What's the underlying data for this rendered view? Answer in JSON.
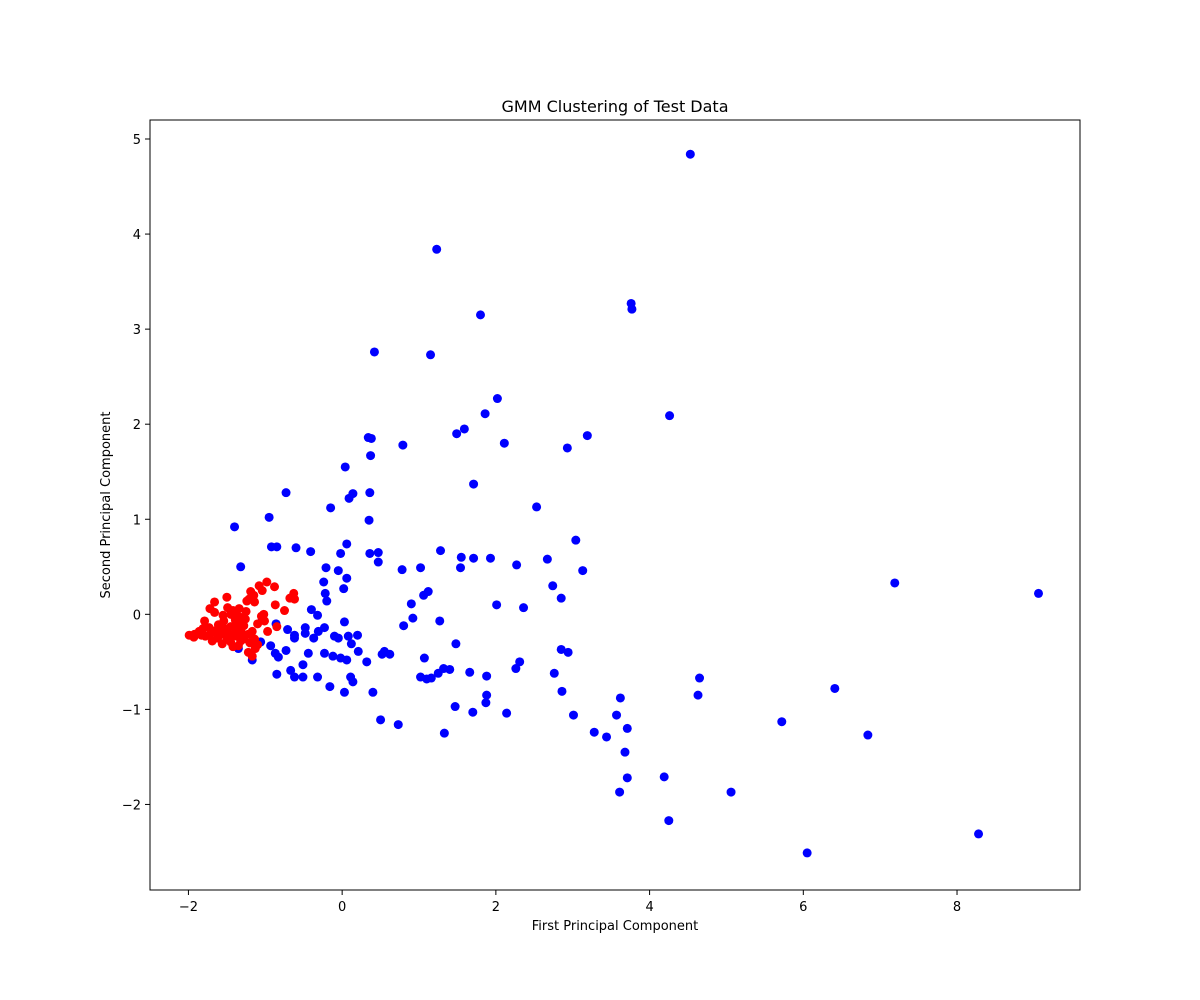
{
  "chart_data": {
    "type": "scatter",
    "title": "GMM Clustering of Test Data",
    "xlabel": "First Principal Component",
    "ylabel": "Second Principal Component",
    "xlim": [
      -2.5,
      9.6
    ],
    "ylim": [
      -2.9,
      5.2
    ],
    "xticks": [
      -2,
      0,
      2,
      4,
      6,
      8
    ],
    "yticks": [
      -2,
      -1,
      0,
      1,
      2,
      3,
      4,
      5
    ],
    "grid": false,
    "legend": "none",
    "series": [
      {
        "color": "#0000ff",
        "points": [
          [
            4.53,
            4.84
          ],
          [
            1.23,
            3.84
          ],
          [
            3.76,
            3.27
          ],
          [
            3.77,
            3.21
          ],
          [
            1.8,
            3.15
          ],
          [
            0.42,
            2.76
          ],
          [
            1.15,
            2.73
          ],
          [
            2.02,
            2.27
          ],
          [
            4.26,
            2.09
          ],
          [
            1.86,
            2.11
          ],
          [
            1.59,
            1.95
          ],
          [
            1.49,
            1.9
          ],
          [
            3.19,
            1.88
          ],
          [
            0.34,
            1.86
          ],
          [
            0.38,
            1.85
          ],
          [
            2.11,
            1.8
          ],
          [
            0.79,
            1.78
          ],
          [
            2.93,
            1.75
          ],
          [
            0.37,
            1.67
          ],
          [
            0.04,
            1.55
          ],
          [
            1.71,
            1.37
          ],
          [
            -0.73,
            1.28
          ],
          [
            0.14,
            1.27
          ],
          [
            0.36,
            1.28
          ],
          [
            0.09,
            1.22
          ],
          [
            -0.15,
            1.12
          ],
          [
            2.53,
            1.13
          ],
          [
            -0.95,
            1.02
          ],
          [
            0.35,
            0.99
          ],
          [
            -1.4,
            0.92
          ],
          [
            3.04,
            0.78
          ],
          [
            0.06,
            0.74
          ],
          [
            -0.92,
            0.71
          ],
          [
            -0.85,
            0.71
          ],
          [
            -0.6,
            0.7
          ],
          [
            1.28,
            0.67
          ],
          [
            -0.41,
            0.66
          ],
          [
            0.47,
            0.65
          ],
          [
            -0.02,
            0.64
          ],
          [
            0.36,
            0.64
          ],
          [
            1.55,
            0.6
          ],
          [
            1.71,
            0.59
          ],
          [
            1.93,
            0.59
          ],
          [
            2.67,
            0.58
          ],
          [
            0.47,
            0.55
          ],
          [
            2.27,
            0.52
          ],
          [
            -1.32,
            0.5
          ],
          [
            1.54,
            0.49
          ],
          [
            1.02,
            0.49
          ],
          [
            -0.21,
            0.49
          ],
          [
            -0.05,
            0.46
          ],
          [
            0.78,
            0.47
          ],
          [
            3.13,
            0.46
          ],
          [
            0.06,
            0.38
          ],
          [
            -0.24,
            0.34
          ],
          [
            2.74,
            0.3
          ],
          [
            0.02,
            0.27
          ],
          [
            -0.22,
            0.22
          ],
          [
            1.12,
            0.24
          ],
          [
            1.06,
            0.2
          ],
          [
            2.85,
            0.17
          ],
          [
            -0.2,
            0.14
          ],
          [
            0.9,
            0.11
          ],
          [
            2.01,
            0.1
          ],
          [
            2.36,
            0.07
          ],
          [
            -0.4,
            0.05
          ],
          [
            -0.32,
            -0.01
          ],
          [
            0.92,
            -0.04
          ],
          [
            1.27,
            -0.07
          ],
          [
            0.03,
            -0.08
          ],
          [
            -1.04,
            -0.04
          ],
          [
            -0.86,
            -0.1
          ],
          [
            0.8,
            -0.12
          ],
          [
            -0.23,
            -0.14
          ],
          [
            -0.48,
            -0.14
          ],
          [
            -0.31,
            -0.18
          ],
          [
            -0.71,
            -0.16
          ],
          [
            -0.48,
            -0.2
          ],
          [
            -0.62,
            -0.22
          ],
          [
            -0.1,
            -0.23
          ],
          [
            0.08,
            -0.23
          ],
          [
            0.2,
            -0.22
          ],
          [
            -0.37,
            -0.25
          ],
          [
            -0.62,
            -0.25
          ],
          [
            -0.05,
            -0.25
          ],
          [
            -1.06,
            -0.29
          ],
          [
            0.12,
            -0.31
          ],
          [
            1.48,
            -0.31
          ],
          [
            -0.93,
            -0.33
          ],
          [
            -1.35,
            -0.36
          ],
          [
            -0.73,
            -0.38
          ],
          [
            0.21,
            -0.39
          ],
          [
            2.85,
            -0.37
          ],
          [
            2.94,
            -0.4
          ],
          [
            -0.87,
            -0.41
          ],
          [
            -0.44,
            -0.41
          ],
          [
            -0.23,
            -0.41
          ],
          [
            0.55,
            -0.39
          ],
          [
            0.52,
            -0.42
          ],
          [
            0.62,
            -0.42
          ],
          [
            -0.83,
            -0.45
          ],
          [
            -0.12,
            -0.44
          ],
          [
            -1.17,
            -0.48
          ],
          [
            -0.02,
            -0.46
          ],
          [
            0.06,
            -0.48
          ],
          [
            1.07,
            -0.46
          ],
          [
            2.31,
            -0.5
          ],
          [
            0.32,
            -0.5
          ],
          [
            -0.51,
            -0.53
          ],
          [
            1.4,
            -0.58
          ],
          [
            -0.67,
            -0.59
          ],
          [
            1.32,
            -0.57
          ],
          [
            2.26,
            -0.57
          ],
          [
            1.66,
            -0.61
          ],
          [
            1.25,
            -0.62
          ],
          [
            -0.85,
            -0.63
          ],
          [
            1.88,
            -0.65
          ],
          [
            -0.62,
            -0.66
          ],
          [
            -0.51,
            -0.66
          ],
          [
            -0.32,
            -0.66
          ],
          [
            0.11,
            -0.66
          ],
          [
            1.02,
            -0.66
          ],
          [
            1.1,
            -0.68
          ],
          [
            4.65,
            -0.67
          ],
          [
            1.16,
            -0.67
          ],
          [
            0.14,
            -0.71
          ],
          [
            -0.16,
            -0.76
          ],
          [
            2.76,
            -0.62
          ],
          [
            6.41,
            -0.78
          ],
          [
            0.03,
            -0.82
          ],
          [
            2.86,
            -0.81
          ],
          [
            0.4,
            -0.82
          ],
          [
            4.63,
            -0.85
          ],
          [
            1.88,
            -0.85
          ],
          [
            3.62,
            -0.88
          ],
          [
            1.87,
            -0.93
          ],
          [
            1.47,
            -0.97
          ],
          [
            1.7,
            -1.03
          ],
          [
            2.14,
            -1.04
          ],
          [
            3.57,
            -1.06
          ],
          [
            3.01,
            -1.06
          ],
          [
            0.5,
            -1.11
          ],
          [
            5.72,
            -1.13
          ],
          [
            0.73,
            -1.16
          ],
          [
            3.71,
            -1.2
          ],
          [
            3.28,
            -1.24
          ],
          [
            1.33,
            -1.25
          ],
          [
            3.44,
            -1.29
          ],
          [
            6.84,
            -1.27
          ],
          [
            3.68,
            -1.45
          ],
          [
            4.19,
            -1.71
          ],
          [
            3.71,
            -1.72
          ],
          [
            3.61,
            -1.87
          ],
          [
            5.06,
            -1.87
          ],
          [
            4.25,
            -2.17
          ],
          [
            8.28,
            -2.31
          ],
          [
            6.05,
            -2.51
          ],
          [
            7.19,
            0.33
          ],
          [
            9.06,
            0.22
          ]
        ]
      },
      {
        "color": "#ff0000",
        "points": [
          [
            -0.98,
            0.34
          ],
          [
            -1.08,
            0.3
          ],
          [
            -0.88,
            0.29
          ],
          [
            -1.04,
            0.25
          ],
          [
            -1.19,
            0.24
          ],
          [
            -0.63,
            0.22
          ],
          [
            -1.15,
            0.2
          ],
          [
            -0.68,
            0.17
          ],
          [
            -1.21,
            0.16
          ],
          [
            -1.5,
            0.18
          ],
          [
            -1.66,
            0.13
          ],
          [
            -0.62,
            0.16
          ],
          [
            -1.14,
            0.13
          ],
          [
            -1.72,
            0.06
          ],
          [
            -1.24,
            0.14
          ],
          [
            -0.87,
            0.1
          ],
          [
            -1.49,
            0.07
          ],
          [
            -1.34,
            0.06
          ],
          [
            -0.75,
            0.04
          ],
          [
            -1.25,
            0.03
          ],
          [
            -1.38,
            0.01
          ],
          [
            -1.66,
            0.02
          ],
          [
            -1.45,
            0.0
          ],
          [
            -1.02,
            0.0
          ],
          [
            -1.55,
            -0.01
          ],
          [
            -1.33,
            -0.03
          ],
          [
            -1.26,
            -0.05
          ],
          [
            -1.79,
            -0.07
          ],
          [
            -1.54,
            -0.07
          ],
          [
            -1.39,
            -0.06
          ],
          [
            -1.01,
            -0.07
          ],
          [
            -1.1,
            -0.1
          ],
          [
            -1.35,
            -0.1
          ],
          [
            -1.61,
            -0.11
          ],
          [
            -1.28,
            -0.12
          ],
          [
            -0.85,
            -0.13
          ],
          [
            -1.45,
            -0.13
          ],
          [
            -1.73,
            -0.14
          ],
          [
            -1.55,
            -0.14
          ],
          [
            -1.81,
            -0.15
          ],
          [
            -1.64,
            -0.17
          ],
          [
            -1.38,
            -0.16
          ],
          [
            -1.17,
            -0.18
          ],
          [
            -1.5,
            -0.19
          ],
          [
            -1.86,
            -0.18
          ],
          [
            -0.97,
            -0.18
          ],
          [
            -1.31,
            -0.19
          ],
          [
            -1.71,
            -0.2
          ],
          [
            -1.92,
            -0.21
          ],
          [
            -1.58,
            -0.21
          ],
          [
            -1.44,
            -0.22
          ],
          [
            -1.22,
            -0.21
          ],
          [
            -1.99,
            -0.22
          ],
          [
            -1.78,
            -0.23
          ],
          [
            -1.37,
            -0.23
          ],
          [
            -1.62,
            -0.25
          ],
          [
            -1.5,
            -0.25
          ],
          [
            -1.14,
            -0.26
          ],
          [
            -1.93,
            -0.24
          ],
          [
            -1.28,
            -0.26
          ],
          [
            -1.69,
            -0.28
          ],
          [
            -1.45,
            -0.29
          ],
          [
            -1.2,
            -0.3
          ],
          [
            -1.56,
            -0.31
          ],
          [
            -1.1,
            -0.32
          ],
          [
            -1.35,
            -0.33
          ],
          [
            -1.42,
            -0.34
          ],
          [
            -1.13,
            -0.36
          ],
          [
            -1.22,
            -0.4
          ],
          [
            -1.17,
            -0.44
          ],
          [
            -1.32,
            -0.28
          ],
          [
            -1.52,
            -0.16
          ],
          [
            -1.83,
            -0.22
          ],
          [
            -1.05,
            -0.02
          ],
          [
            -1.42,
            0.04
          ]
        ]
      }
    ]
  }
}
